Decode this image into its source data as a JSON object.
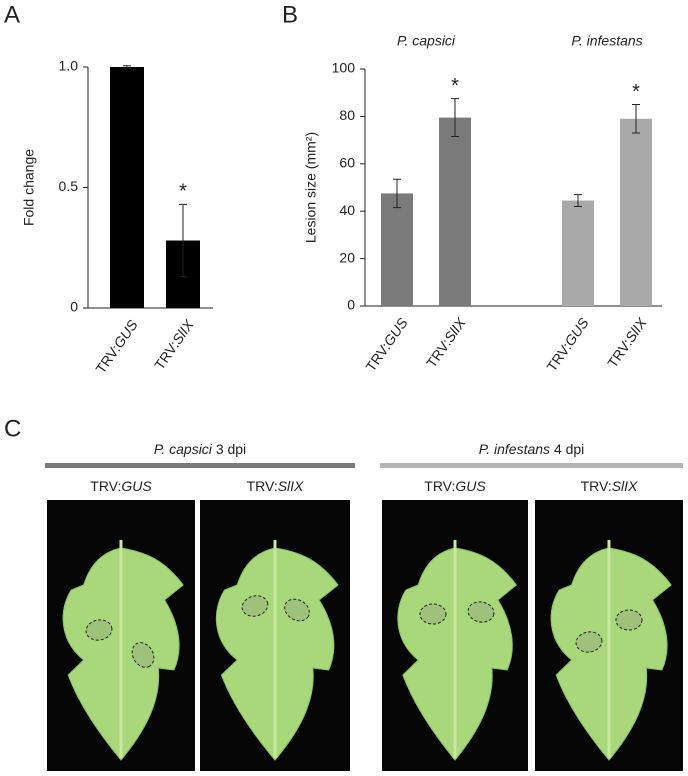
{
  "chart_data": [
    {
      "type": "bar",
      "panel": "A",
      "ylabel": "Fold change",
      "categories": [
        "TRV:GUS",
        "TRV:SlIX"
      ],
      "values": [
        1.0,
        0.28
      ],
      "errors": [
        0.005,
        0.15
      ],
      "significance": [
        null,
        "*"
      ],
      "color": "#000000",
      "ylim": [
        0,
        1
      ],
      "yticks": [
        0,
        0.5,
        {
          "value": 1,
          "label": "1.0"
        }
      ]
    },
    {
      "type": "grouped_bar",
      "panel": "B",
      "ylabel": "Lesion size (mm²)",
      "categories": [
        "TRV:GUS",
        "TRV:SlIX"
      ],
      "series": [
        {
          "name": "P. capsici",
          "color": "#7a7a7a",
          "values": [
            47.5,
            79.5
          ],
          "errors": [
            6,
            8
          ],
          "significance": [
            null,
            "*"
          ]
        },
        {
          "name": "P. infestans",
          "color": "#a9a9a9",
          "values": [
            44.5,
            79
          ],
          "errors": [
            2.5,
            6
          ],
          "significance": [
            null,
            "*"
          ]
        }
      ],
      "ylim": [
        0,
        100
      ],
      "yticks": [
        0,
        20,
        40,
        60,
        80,
        100
      ]
    }
  ],
  "panel_c": {
    "label": "C",
    "groups": [
      {
        "species": "P. capsici",
        "time": "3 dpi",
        "color": "#7a7a7a",
        "images": [
          "TRV:GUS",
          "TRV:SlIX"
        ]
      },
      {
        "species": "P. infestans",
        "time": "4 dpi",
        "color": "#b5b5b5",
        "images": [
          "TRV:GUS",
          "TRV:SlIX"
        ]
      }
    ]
  }
}
